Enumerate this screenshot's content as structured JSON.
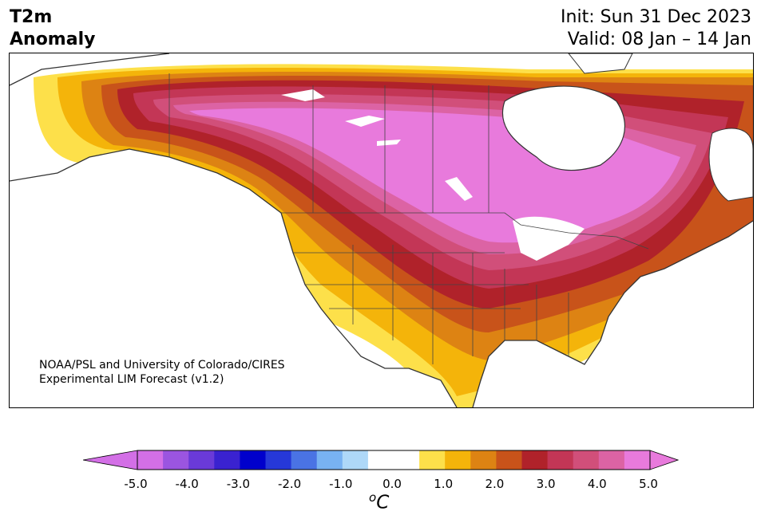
{
  "title": {
    "line1": "T2m",
    "line2": "Anomaly",
    "init": "Init: Sun 31 Dec 2023",
    "valid": "Valid: 08 Jan – 14 Jan"
  },
  "credit": {
    "line1": "NOAA/PSL and University of Colorado/CIRES",
    "line2": "Experimental LIM Forecast (v1.2)"
  },
  "colorbar": {
    "unit_main": "C",
    "unit_sup": "o",
    "ticks": [
      "-5.0",
      "-4.0",
      "-3.0",
      "-2.0",
      "-1.0",
      "0.0",
      "1.0",
      "2.0",
      "3.0",
      "4.0",
      "5.0"
    ],
    "under_color": "#d36fe6",
    "over_color": "#e87adc",
    "colors": [
      "#d36fe6",
      "#9b55e0",
      "#6a3ad8",
      "#3a22d0",
      "#0000cc",
      "#2638d8",
      "#4a73e4",
      "#78b2f2",
      "#aed8f8",
      "#ffffff",
      "#ffffff",
      "#fde04a",
      "#f4b40a",
      "#dd8313",
      "#c8531a",
      "#b0222a",
      "#c33656",
      "#d14f7a",
      "#dc63a4",
      "#e87adc"
    ]
  },
  "map": {
    "land_background": "#ffffff",
    "lakes_color": "#ffffff",
    "anomaly_levels_colors": [
      "#fde04a",
      "#f4b40a",
      "#dd8313",
      "#c8531a",
      "#b0222a",
      "#c33656",
      "#d14f7a",
      "#dc63a4",
      "#e87adc"
    ]
  }
}
